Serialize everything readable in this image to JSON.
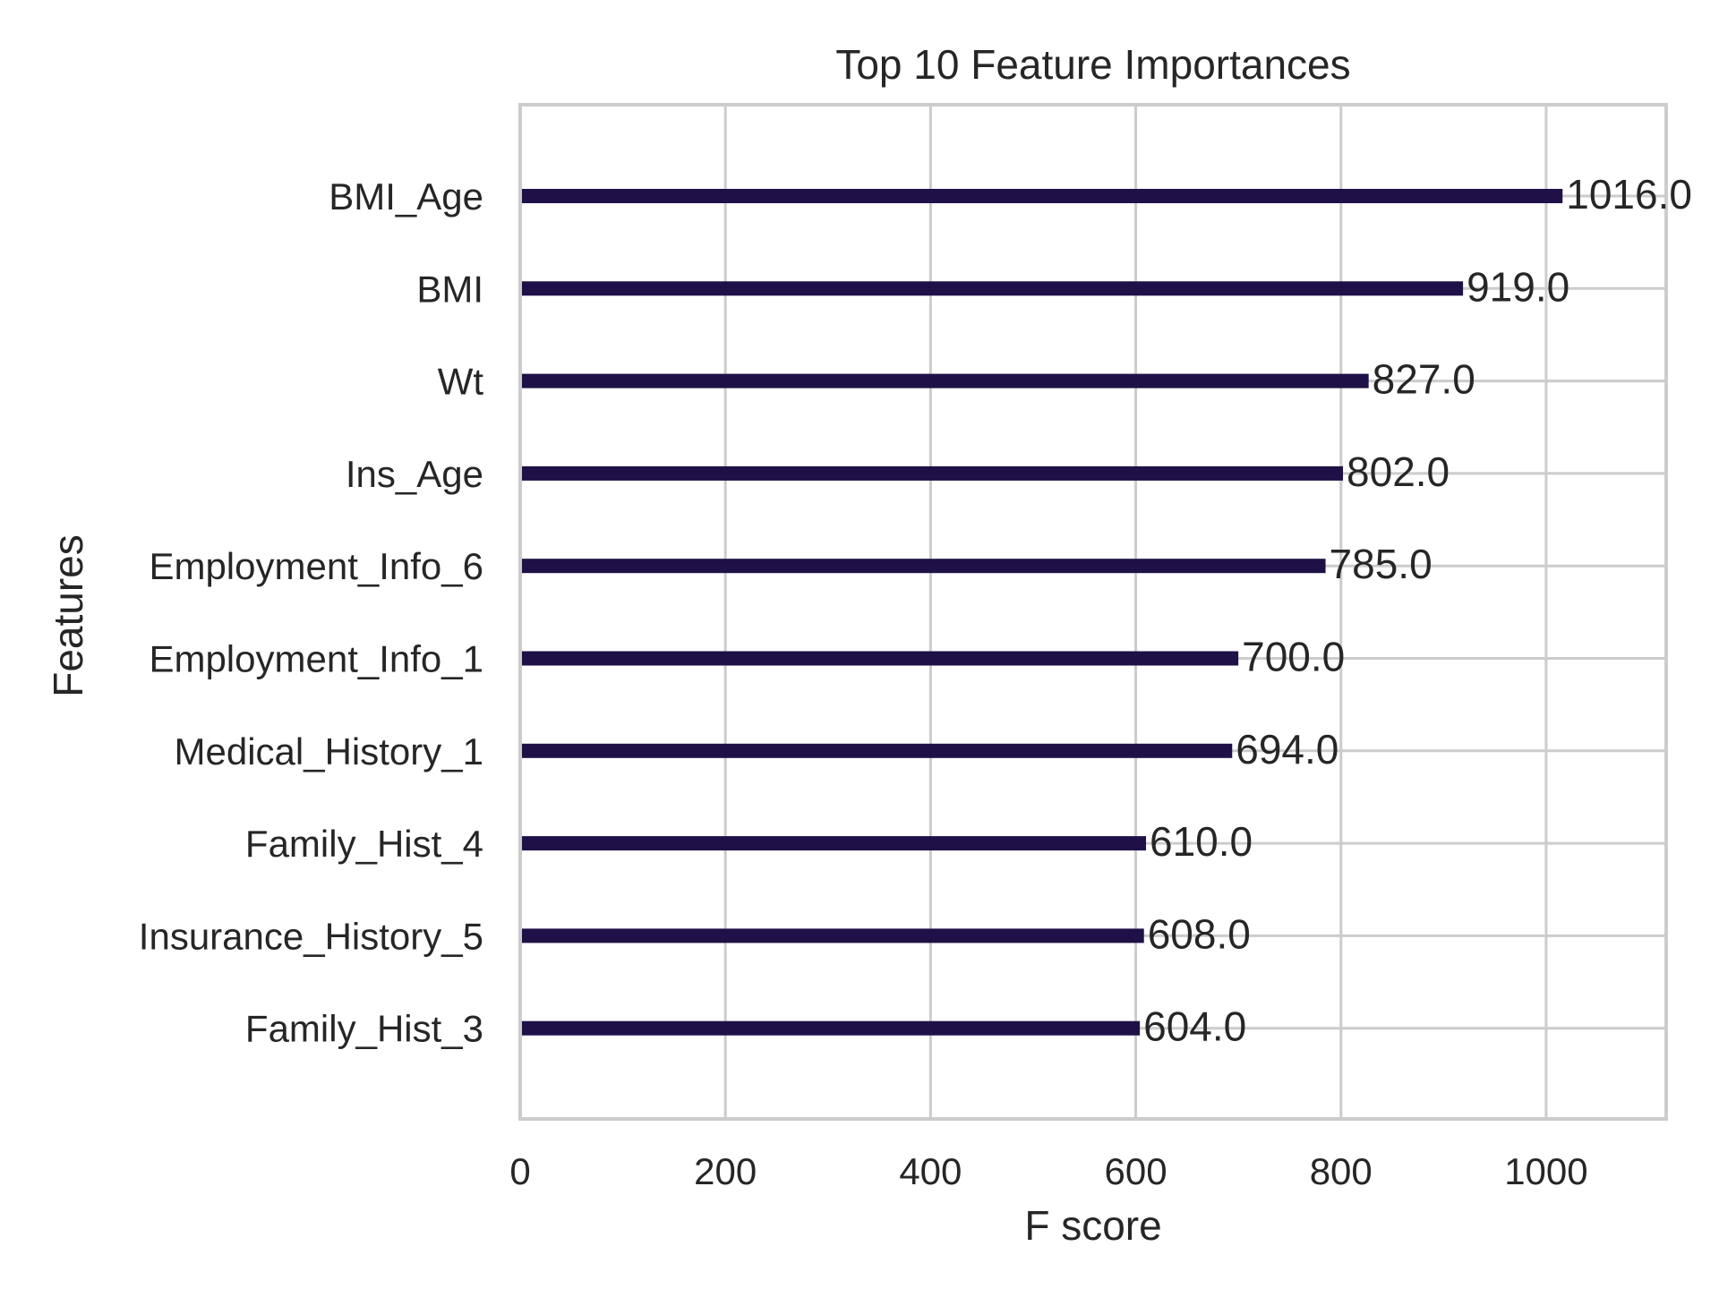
{
  "chart_data": {
    "type": "bar",
    "orientation": "horizontal",
    "title": "Top 10 Feature Importances",
    "xlabel": "F score",
    "ylabel": "Features",
    "xlim": [
      0,
      1117
    ],
    "xticks": [
      0,
      200,
      400,
      600,
      800,
      1000
    ],
    "grid": true,
    "bar_color": "#1f1147",
    "categories": [
      "BMI_Age",
      "BMI",
      "Wt",
      "Ins_Age",
      "Employment_Info_6",
      "Employment_Info_1",
      "Medical_History_1",
      "Family_Hist_4",
      "Insurance_History_5",
      "Family_Hist_3"
    ],
    "values": [
      1016,
      919,
      827,
      802,
      785,
      700,
      694,
      610,
      608,
      604
    ],
    "value_labels": [
      "1016.0",
      "919.0",
      "827.0",
      "802.0",
      "785.0",
      "700.0",
      "694.0",
      "610.0",
      "608.0",
      "604.0"
    ]
  }
}
